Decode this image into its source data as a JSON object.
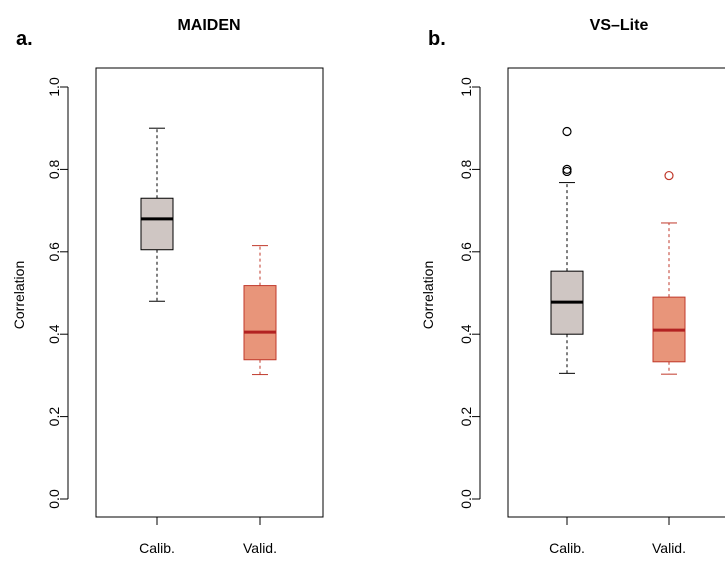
{
  "chart_data": [
    {
      "type": "box",
      "panel_label": "a.",
      "title": "MAIDEN",
      "ylabel": "Correlation",
      "ylim": [
        0.0,
        1.0
      ],
      "yticks": [
        "0.0",
        "0.2",
        "0.4",
        "0.6",
        "0.8",
        "1.0"
      ],
      "categories": [
        "Calib.",
        "Valid."
      ],
      "boxes": [
        {
          "category": "Calib.",
          "whisker_low": 0.48,
          "q1": 0.605,
          "median": 0.68,
          "q3": 0.73,
          "whisker_high": 0.9,
          "outliers": [],
          "fill": "#cfc6c3",
          "stroke": "#000000",
          "median_color": "#000000"
        },
        {
          "category": "Valid.",
          "whisker_low": 0.302,
          "q1": 0.338,
          "median": 0.405,
          "q3": 0.518,
          "whisker_high": 0.615,
          "outliers": [],
          "fill": "#e8957a",
          "stroke": "#c0392b",
          "median_color": "#b22222"
        }
      ]
    },
    {
      "type": "box",
      "panel_label": "b.",
      "title": "VS–Lite",
      "ylabel": "Correlation",
      "ylim": [
        0.0,
        1.0
      ],
      "yticks": [
        "0.0",
        "0.2",
        "0.4",
        "0.6",
        "0.8",
        "1.0"
      ],
      "categories": [
        "Calib.",
        "Valid."
      ],
      "boxes": [
        {
          "category": "Calib.",
          "whisker_low": 0.305,
          "q1": 0.4,
          "median": 0.478,
          "q3": 0.553,
          "whisker_high": 0.768,
          "outliers": [
            0.892,
            0.8,
            0.795
          ],
          "fill": "#cfc6c3",
          "stroke": "#000000",
          "median_color": "#000000"
        },
        {
          "category": "Valid.",
          "whisker_low": 0.303,
          "q1": 0.333,
          "median": 0.41,
          "q3": 0.49,
          "whisker_high": 0.67,
          "outliers": [
            0.785
          ],
          "fill": "#e8957a",
          "stroke": "#c0392b",
          "median_color": "#b22222"
        }
      ]
    }
  ]
}
